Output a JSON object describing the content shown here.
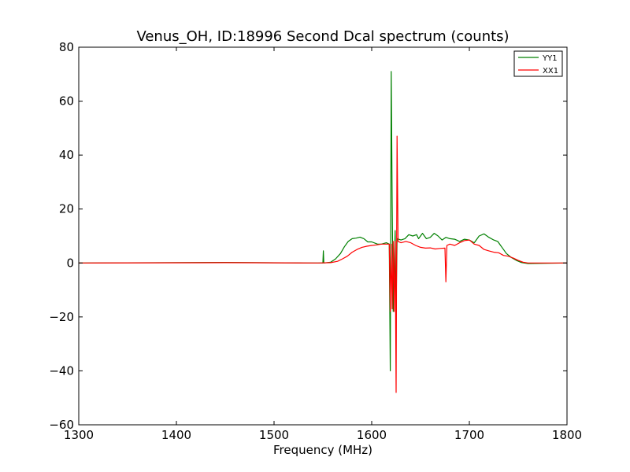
{
  "chart_data": {
    "type": "line",
    "title": "Venus_OH, ID:18996 Second Dcal spectrum (counts)",
    "xlabel": "Frequency (MHz)",
    "ylabel": "",
    "xlim": [
      1300,
      1800
    ],
    "ylim": [
      -60,
      80
    ],
    "xticks": [
      1300,
      1400,
      1500,
      1600,
      1700,
      1800
    ],
    "yticks": [
      -60,
      -40,
      -20,
      0,
      20,
      40,
      60,
      80
    ],
    "grid": false,
    "legend_position": "top-right",
    "series": [
      {
        "name": "YY1",
        "color": "#008000",
        "points": [
          [
            1300,
            0
          ],
          [
            1450,
            0.2
          ],
          [
            1530,
            0
          ],
          [
            1550,
            0
          ],
          [
            1550.5,
            4.5
          ],
          [
            1551,
            0
          ],
          [
            1558,
            0.3
          ],
          [
            1563,
            1.5
          ],
          [
            1568,
            3.5
          ],
          [
            1572,
            6
          ],
          [
            1576,
            8
          ],
          [
            1580,
            9
          ],
          [
            1584,
            9.2
          ],
          [
            1588,
            9.6
          ],
          [
            1592,
            9
          ],
          [
            1596,
            7.8
          ],
          [
            1600,
            7.8
          ],
          [
            1606,
            7
          ],
          [
            1610,
            7
          ],
          [
            1615,
            7.5
          ],
          [
            1618,
            7
          ],
          [
            1619,
            -40
          ],
          [
            1620,
            71
          ],
          [
            1621,
            22
          ],
          [
            1622,
            -18
          ],
          [
            1624,
            12
          ],
          [
            1625,
            -18
          ],
          [
            1626,
            9
          ],
          [
            1630,
            8.5
          ],
          [
            1634,
            9
          ],
          [
            1638,
            10.5
          ],
          [
            1642,
            10
          ],
          [
            1646,
            10.5
          ],
          [
            1648,
            9
          ],
          [
            1652,
            11
          ],
          [
            1656,
            9
          ],
          [
            1660,
            9.5
          ],
          [
            1664,
            11
          ],
          [
            1668,
            10
          ],
          [
            1672,
            8.5
          ],
          [
            1676,
            9.5
          ],
          [
            1680,
            9
          ],
          [
            1685,
            8.8
          ],
          [
            1690,
            8
          ],
          [
            1695,
            8.8
          ],
          [
            1700,
            8.5
          ],
          [
            1705,
            7.5
          ],
          [
            1710,
            10
          ],
          [
            1715,
            10.8
          ],
          [
            1720,
            9.5
          ],
          [
            1725,
            8.5
          ],
          [
            1729,
            8
          ],
          [
            1733,
            6
          ],
          [
            1738,
            3.5
          ],
          [
            1743,
            2
          ],
          [
            1748,
            1
          ],
          [
            1753,
            0.2
          ],
          [
            1760,
            -0.2
          ],
          [
            1800,
            0
          ]
        ]
      },
      {
        "name": "XX1",
        "color": "#ff0000",
        "points": [
          [
            1300,
            0
          ],
          [
            1450,
            0.1
          ],
          [
            1545,
            0
          ],
          [
            1558,
            0.1
          ],
          [
            1565,
            0.6
          ],
          [
            1570,
            1.5
          ],
          [
            1575,
            2.5
          ],
          [
            1580,
            4
          ],
          [
            1585,
            5
          ],
          [
            1590,
            5.8
          ],
          [
            1595,
            6.2
          ],
          [
            1600,
            6.5
          ],
          [
            1605,
            6.7
          ],
          [
            1610,
            7
          ],
          [
            1615,
            7
          ],
          [
            1618,
            7
          ],
          [
            1619,
            -18
          ],
          [
            1620,
            7
          ],
          [
            1621,
            -17
          ],
          [
            1622,
            8
          ],
          [
            1623,
            -18
          ],
          [
            1624,
            8
          ],
          [
            1625,
            -48
          ],
          [
            1626,
            47
          ],
          [
            1627,
            8
          ],
          [
            1630,
            7.5
          ],
          [
            1635,
            8
          ],
          [
            1640,
            7.5
          ],
          [
            1645,
            6.5
          ],
          [
            1650,
            5.8
          ],
          [
            1655,
            5.5
          ],
          [
            1660,
            5.6
          ],
          [
            1665,
            5.2
          ],
          [
            1670,
            5.4
          ],
          [
            1675,
            5.5
          ],
          [
            1676,
            -7
          ],
          [
            1677,
            6.5
          ],
          [
            1680,
            7
          ],
          [
            1685,
            6.5
          ],
          [
            1690,
            7.5
          ],
          [
            1695,
            8.3
          ],
          [
            1700,
            8.5
          ],
          [
            1705,
            7
          ],
          [
            1710,
            6.5
          ],
          [
            1715,
            5
          ],
          [
            1720,
            4.5
          ],
          [
            1725,
            4
          ],
          [
            1730,
            3.8
          ],
          [
            1735,
            2.8
          ],
          [
            1740,
            2.5
          ],
          [
            1745,
            1.8
          ],
          [
            1750,
            1
          ],
          [
            1755,
            0.3
          ],
          [
            1760,
            0
          ],
          [
            1800,
            0
          ]
        ]
      }
    ]
  }
}
